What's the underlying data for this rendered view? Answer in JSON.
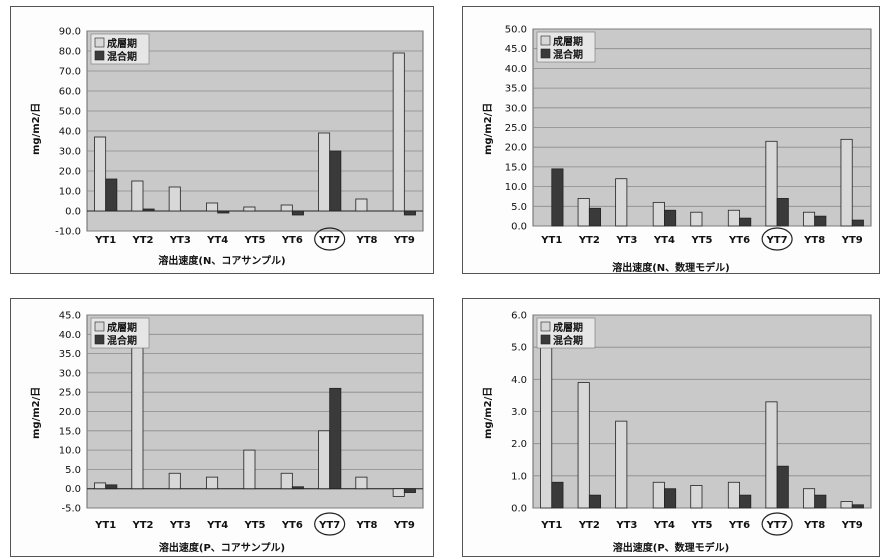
{
  "palette": {
    "series1": "#d8d8d8",
    "series2": "#3a3a3a",
    "plot_bg": "#c9c9c9",
    "grid": "#8a8a8a",
    "circle": "#222222"
  },
  "chart_data": [
    {
      "type": "bar",
      "title": "",
      "xlabel": "溶出速度(N、コアサンプル)",
      "ylabel": "mg/m2/日",
      "categories": [
        "YT1",
        "YT2",
        "YT3",
        "YT4",
        "YT5",
        "YT6",
        "YT7",
        "YT8",
        "YT9"
      ],
      "circled_category": "YT7",
      "ylim": [
        -10,
        90
      ],
      "yticks": [
        "-10.0",
        "0.0",
        "10.0",
        "20.0",
        "30.0",
        "40.0",
        "50.0",
        "60.0",
        "70.0",
        "80.0",
        "90.0"
      ],
      "legend_position": "top-left",
      "series": [
        {
          "name": "成層期",
          "values": [
            37,
            15,
            12,
            4,
            2,
            3,
            39,
            6,
            79
          ]
        },
        {
          "name": "混合期",
          "values": [
            16,
            1,
            0,
            -1,
            0,
            -2,
            30,
            0,
            -2
          ]
        }
      ]
    },
    {
      "type": "bar",
      "title": "",
      "xlabel": "溶出速度(N、数理モデル)",
      "ylabel": "mg/m2/日",
      "categories": [
        "YT1",
        "YT2",
        "YT3",
        "YT4",
        "YT5",
        "YT6",
        "YT7",
        "YT8",
        "YT9"
      ],
      "circled_category": "YT7",
      "ylim": [
        0,
        50
      ],
      "yticks": [
        "0.0",
        "5.0",
        "10.0",
        "15.0",
        "20.0",
        "25.0",
        "30.0",
        "35.0",
        "40.0",
        "45.0",
        "50.0"
      ],
      "legend_position": "top-left",
      "series": [
        {
          "name": "成層期",
          "values": [
            0,
            7,
            12,
            6,
            3.5,
            4,
            21.5,
            3.5,
            22
          ]
        },
        {
          "name": "混合期",
          "values": [
            14.5,
            4.5,
            0,
            4,
            0,
            2,
            7,
            2.5,
            1.5
          ]
        }
      ]
    },
    {
      "type": "bar",
      "title": "",
      "xlabel": "溶出速度(P、コアサンプル)",
      "ylabel": "mg/m2/日",
      "categories": [
        "YT1",
        "YT2",
        "YT3",
        "YT4",
        "YT5",
        "YT6",
        "YT7",
        "YT8",
        "YT9"
      ],
      "circled_category": "YT7",
      "ylim": [
        -5,
        45
      ],
      "yticks": [
        "-5.0",
        "0.0",
        "5.0",
        "10.0",
        "15.0",
        "20.0",
        "25.0",
        "30.0",
        "35.0",
        "40.0",
        "45.0"
      ],
      "legend_position": "top-left",
      "series": [
        {
          "name": "成層期",
          "values": [
            1.5,
            37,
            4,
            3,
            10,
            4,
            15,
            3,
            -2
          ]
        },
        {
          "name": "混合期",
          "values": [
            1,
            0,
            0,
            0,
            0,
            0.5,
            26,
            0,
            -1
          ]
        }
      ]
    },
    {
      "type": "bar",
      "title": "",
      "xlabel": "溶出速度(P、数理モデル)",
      "ylabel": "mg/m2/日",
      "categories": [
        "YT1",
        "YT2",
        "YT3",
        "YT4",
        "YT5",
        "YT6",
        "YT7",
        "YT8",
        "YT9"
      ],
      "circled_category": "YT7",
      "ylim": [
        0,
        6
      ],
      "yticks": [
        "0.0",
        "1.0",
        "2.0",
        "3.0",
        "4.0",
        "5.0",
        "6.0"
      ],
      "legend_position": "top-left",
      "series": [
        {
          "name": "成層期",
          "values": [
            5.2,
            3.9,
            2.7,
            0.8,
            0.7,
            0.8,
            3.3,
            0.6,
            0.2
          ]
        },
        {
          "name": "混合期",
          "values": [
            0.8,
            0.4,
            0,
            0.6,
            0,
            0.4,
            1.3,
            0.4,
            0.1
          ]
        }
      ]
    }
  ]
}
